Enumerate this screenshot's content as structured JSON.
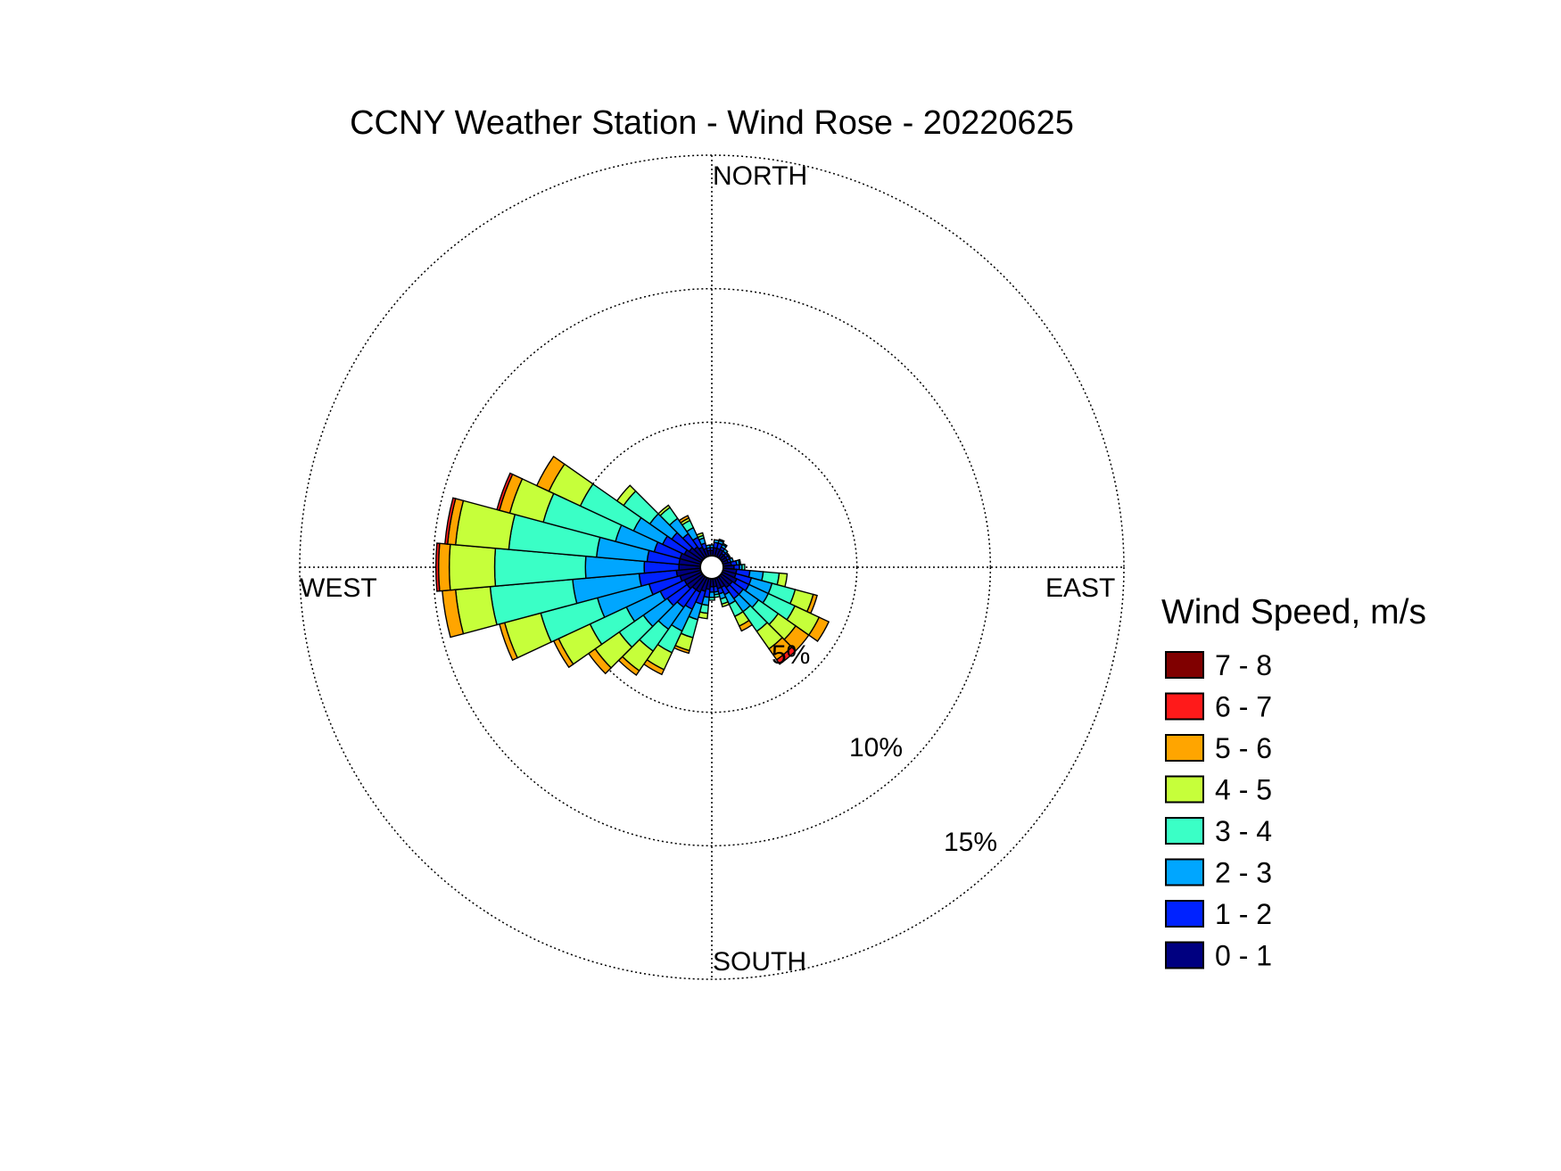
{
  "chart_data": {
    "type": "wind_rose",
    "title": "CCNY Weather Station - Wind Rose - 20220625",
    "directions": [
      "NORTH",
      "EAST",
      "SOUTH",
      "WEST"
    ],
    "radial_ticks": [
      "5%",
      "10%",
      "15%"
    ],
    "radial_tick_values": [
      5,
      10,
      15
    ],
    "rmax": 15,
    "grid": true,
    "legend": {
      "title": "Wind Speed, m/s",
      "placement": "right",
      "bins": [
        {
          "label": "7 - 8",
          "color": "#800000"
        },
        {
          "label": "6 - 7",
          "color": "#ff1a1a"
        },
        {
          "label": "5 - 6",
          "color": "#ffa500"
        },
        {
          "label": "4 - 5",
          "color": "#c6ff3a"
        },
        {
          "label": "3 - 4",
          "color": "#3affc6"
        },
        {
          "label": "2 - 3",
          "color": "#00a6ff"
        },
        {
          "label": "1 - 2",
          "color": "#0022ff"
        },
        {
          "label": "0 - 1",
          "color": "#000080"
        }
      ]
    },
    "sector_width_deg": 10,
    "sector_order_bins": [
      "0 - 1",
      "1 - 2",
      "2 - 3",
      "3 - 4",
      "4 - 5",
      "5 - 6",
      "6 - 7",
      "7 - 8"
    ],
    "sectors": [
      {
        "dir": 0,
        "values": [
          0.2,
          0.1,
          0.1,
          0.0,
          0.0,
          0.0,
          0.0,
          0.0
        ]
      },
      {
        "dir": 10,
        "values": [
          0.3,
          0.2,
          0.1,
          0.0,
          0.0,
          0.0,
          0.0,
          0.0
        ]
      },
      {
        "dir": 20,
        "values": [
          0.3,
          0.2,
          0.1,
          0.05,
          0.0,
          0.0,
          0.0,
          0.0
        ]
      },
      {
        "dir": 30,
        "values": [
          0.3,
          0.1,
          0.1,
          0.05,
          0.0,
          0.0,
          0.0,
          0.0
        ]
      },
      {
        "dir": 40,
        "values": [
          0.2,
          0.1,
          0.1,
          0.0,
          0.0,
          0.0,
          0.0,
          0.0
        ]
      },
      {
        "dir": 50,
        "values": [
          0.2,
          0.1,
          0.05,
          0.0,
          0.0,
          0.0,
          0.0,
          0.0
        ]
      },
      {
        "dir": 60,
        "values": [
          0.2,
          0.1,
          0.05,
          0.0,
          0.0,
          0.0,
          0.0,
          0.0
        ]
      },
      {
        "dir": 70,
        "values": [
          0.2,
          0.1,
          0.1,
          0.0,
          0.0,
          0.0,
          0.0,
          0.0
        ]
      },
      {
        "dir": 80,
        "values": [
          0.3,
          0.2,
          0.1,
          0.05,
          0.0,
          0.0,
          0.0,
          0.0
        ]
      },
      {
        "dir": 90,
        "values": [
          0.4,
          0.2,
          0.1,
          0.1,
          0.0,
          0.0,
          0.0,
          0.0
        ]
      },
      {
        "dir": 100,
        "values": [
          0.5,
          0.5,
          0.5,
          0.6,
          0.3,
          0.0,
          0.0,
          0.0
        ]
      },
      {
        "dir": 110,
        "values": [
          0.5,
          0.6,
          0.8,
          0.9,
          0.7,
          0.15,
          0.0,
          0.0
        ]
      },
      {
        "dir": 120,
        "values": [
          0.6,
          0.5,
          0.8,
          1.1,
          1.0,
          0.4,
          0.0,
          0.0
        ]
      },
      {
        "dir": 130,
        "values": [
          0.5,
          0.5,
          0.7,
          0.9,
          0.8,
          0.6,
          0.0,
          0.0
        ]
      },
      {
        "dir": 140,
        "values": [
          0.5,
          0.5,
          0.6,
          0.9,
          0.8,
          0.5,
          0.2,
          0.0
        ]
      },
      {
        "dir": 150,
        "values": [
          0.4,
          0.3,
          0.4,
          0.5,
          0.4,
          0.2,
          0.0,
          0.0
        ]
      },
      {
        "dir": 160,
        "values": [
          0.4,
          0.2,
          0.2,
          0.2,
          0.1,
          0.0,
          0.0,
          0.0
        ]
      },
      {
        "dir": 170,
        "values": [
          0.3,
          0.2,
          0.1,
          0.1,
          0.0,
          0.0,
          0.0,
          0.0
        ]
      },
      {
        "dir": 180,
        "values": [
          0.3,
          0.2,
          0.2,
          0.1,
          0.0,
          0.0,
          0.0,
          0.0
        ]
      },
      {
        "dir": 190,
        "values": [
          0.4,
          0.3,
          0.3,
          0.3,
          0.2,
          0.0,
          0.0,
          0.0
        ]
      },
      {
        "dir": 200,
        "values": [
          0.5,
          0.5,
          0.6,
          0.7,
          0.5,
          0.1,
          0.0,
          0.0
        ]
      },
      {
        "dir": 210,
        "values": [
          0.6,
          0.7,
          0.9,
          0.9,
          0.7,
          0.2,
          0.0,
          0.0
        ]
      },
      {
        "dir": 220,
        "values": [
          0.6,
          0.8,
          1.0,
          1.0,
          0.9,
          0.2,
          0.0,
          0.0
        ]
      },
      {
        "dir": 230,
        "values": [
          0.7,
          0.9,
          1.1,
          1.1,
          1.1,
          0.3,
          0.0,
          0.0
        ]
      },
      {
        "dir": 240,
        "values": [
          0.7,
          1.0,
          1.4,
          1.5,
          1.3,
          0.2,
          0.0,
          0.0
        ]
      },
      {
        "dir": 250,
        "values": [
          0.8,
          1.2,
          2.0,
          2.2,
          1.4,
          0.2,
          0.0,
          0.0
        ]
      },
      {
        "dir": 260,
        "values": [
          0.9,
          1.4,
          2.5,
          3.1,
          1.3,
          0.5,
          0.0,
          0.0
        ]
      },
      {
        "dir": 270,
        "values": [
          0.8,
          1.3,
          2.2,
          3.4,
          1.7,
          0.4,
          0.1,
          0.0
        ]
      },
      {
        "dir": 280,
        "values": [
          0.8,
          1.2,
          1.9,
          3.3,
          2.0,
          0.3,
          0.1,
          0.0
        ]
      },
      {
        "dir": 290,
        "values": [
          0.8,
          1.0,
          1.5,
          2.8,
          1.3,
          0.4,
          0.1,
          0.0
        ]
      },
      {
        "dir": 300,
        "values": [
          0.7,
          0.9,
          1.2,
          2.2,
          1.3,
          0.5,
          0.0,
          0.0
        ]
      },
      {
        "dir": 310,
        "values": [
          0.6,
          0.8,
          1.0,
          1.2,
          0.3,
          0.0,
          0.0,
          0.0
        ]
      },
      {
        "dir": 320,
        "values": [
          0.5,
          0.6,
          0.7,
          0.5,
          0.1,
          0.0,
          0.0,
          0.0
        ]
      },
      {
        "dir": 330,
        "values": [
          0.4,
          0.4,
          0.4,
          0.3,
          0.1,
          0.1,
          0.0,
          0.0
        ]
      },
      {
        "dir": 340,
        "values": [
          0.3,
          0.2,
          0.2,
          0.1,
          0.1,
          0.0,
          0.0,
          0.0
        ]
      },
      {
        "dir": 350,
        "values": [
          0.2,
          0.1,
          0.1,
          0.0,
          0.0,
          0.0,
          0.0,
          0.0
        ]
      }
    ]
  }
}
